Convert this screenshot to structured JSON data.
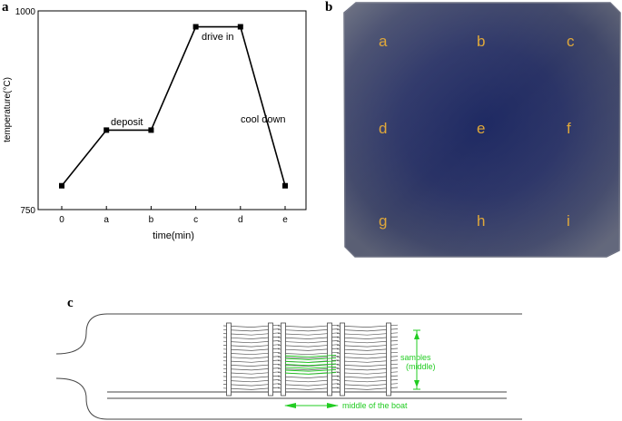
{
  "panel_a": {
    "label": "a",
    "chart_data": {
      "type": "line",
      "categories": [
        "0",
        "a",
        "b",
        "c",
        "d",
        "e"
      ],
      "values": [
        780,
        850,
        850,
        980,
        980,
        780
      ],
      "xlabel": "time(min)",
      "ylabel": "temperature(°C)",
      "ylim": [
        750,
        1000
      ],
      "y_ticks": [
        "750",
        "1000"
      ],
      "annotations": [
        "deposit",
        "drive in",
        "cool down"
      ],
      "grid": false
    }
  },
  "panel_b": {
    "label": "b",
    "grid_letters": [
      "a",
      "b",
      "c",
      "d",
      "e",
      "f",
      "g",
      "h",
      "i"
    ],
    "colors": {
      "wafer_center": "#1f2a63",
      "wafer_edge": "#4a5070",
      "letter": "#e0a83a"
    }
  },
  "panel_c": {
    "label": "c",
    "samples_label": [
      "samples",
      "(middle)"
    ],
    "boat_label": "middle of the boat",
    "colors": {
      "annotation": "#22cc22",
      "lines": "#444444"
    }
  }
}
